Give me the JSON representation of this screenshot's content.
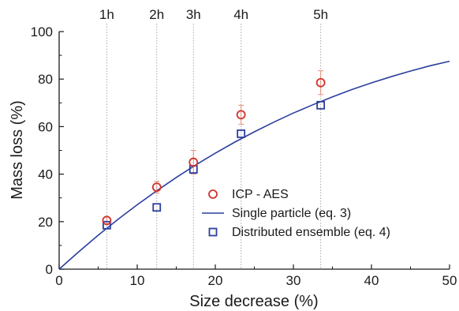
{
  "chart_data": {
    "type": "scatter",
    "xlabel": "Size decrease (%)",
    "ylabel": "Mass loss (%)",
    "xlim": [
      0,
      50
    ],
    "ylim": [
      0,
      100
    ],
    "x_ticks": [
      0,
      10,
      20,
      30,
      40,
      50
    ],
    "y_ticks": [
      0,
      20,
      40,
      60,
      80,
      100
    ],
    "grid": false,
    "legend_position": "bottom-right",
    "time_markers": [
      {
        "label": "1h",
        "x": 6.1
      },
      {
        "label": "2h",
        "x": 12.5
      },
      {
        "label": "3h",
        "x": 17.2
      },
      {
        "label": "4h",
        "x": 23.3
      },
      {
        "label": "5h",
        "x": 33.5
      }
    ],
    "series": [
      {
        "name": "ICP - AES",
        "marker": "circle",
        "color": "#d2312d",
        "x": [
          6.1,
          12.5,
          17.2,
          23.3,
          33.5
        ],
        "y": [
          20.5,
          34.5,
          45.0,
          65.0,
          78.5
        ],
        "error": [
          1.5,
          2.5,
          5.0,
          4.0,
          5.0
        ]
      },
      {
        "name": "Single particle (eq. 3)",
        "type": "line",
        "color": "#2b3f9e",
        "x": [
          0,
          2.5,
          5,
          7.5,
          10,
          12.5,
          15,
          17.5,
          20,
          22.5,
          25,
          27.5,
          30,
          32.5,
          35,
          37.5,
          40,
          42.5,
          45,
          47.5,
          50
        ],
        "y": [
          0,
          7.3,
          14.3,
          20.9,
          27.1,
          33.0,
          38.6,
          43.9,
          48.8,
          53.5,
          57.8,
          61.9,
          65.7,
          69.2,
          72.5,
          75.6,
          78.4,
          81.0,
          83.4,
          85.6,
          87.5
        ]
      },
      {
        "name": "Distributed ensemble (eq. 4)",
        "marker": "square",
        "color": "#2b3f9e",
        "x": [
          6.1,
          12.5,
          17.2,
          23.3,
          33.5
        ],
        "y": [
          18.5,
          26.0,
          42.0,
          57.0,
          69.0
        ]
      }
    ]
  }
}
